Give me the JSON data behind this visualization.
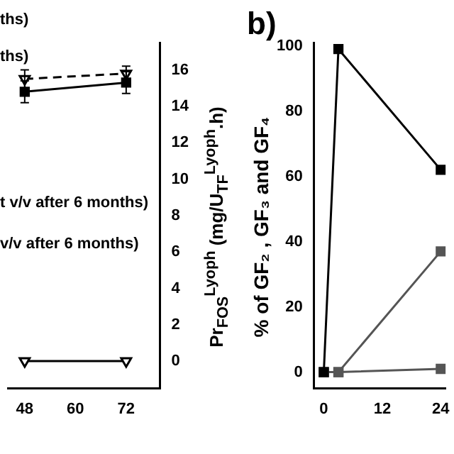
{
  "chart_data": [
    {
      "type": "line",
      "x": [
        48,
        72
      ],
      "xlim": [
        44,
        80
      ],
      "xticks": [
        48,
        60,
        72
      ],
      "y2lim": [
        -1.5,
        17.5
      ],
      "y2ticks": [
        0,
        2,
        4,
        6,
        8,
        10,
        12,
        14,
        16
      ],
      "y2label": "Pr$_{FOS}$$^{Lyoph}$ (mg/U$_{TF}$$^{Lyoph}$.h)",
      "annotations": [
        "ths)",
        "ths)",
        "t v/v after 6 months)",
        "v/v after 6 months)"
      ],
      "series": [
        {
          "color": "#000000",
          "values": [
            14.8,
            15.3
          ],
          "errors": [
            0.6,
            0.6
          ],
          "marker": "square",
          "line_style": "solid",
          "axis": "y2"
        },
        {
          "color": "#000000",
          "values": [
            15.5,
            15.8
          ],
          "errors": [
            0.5,
            0.4
          ],
          "marker": "triangle",
          "line_style": "dashed",
          "axis": "y2"
        },
        {
          "color": "#000000",
          "values": [
            0,
            0
          ],
          "marker": "triangle",
          "line_style": "solid",
          "axis": "y2"
        }
      ]
    },
    {
      "type": "line",
      "title": "b)",
      "x": [
        0,
        3,
        24
      ],
      "xlim": [
        -2,
        25
      ],
      "xticks": [
        0,
        12,
        24
      ],
      "ylim": [
        -5,
        101
      ],
      "yticks": [
        0,
        20,
        40,
        60,
        80,
        100
      ],
      "ylabel": "% of GF₂ , GF₃ and GF₄",
      "series": [
        {
          "color": "#000000",
          "values": [
            0,
            99,
            62
          ],
          "marker": "square",
          "line_style": "solid"
        },
        {
          "color": "#555555",
          "values": [
            0,
            0,
            37
          ],
          "marker": "square",
          "line_style": "solid"
        },
        {
          "color": "#555555",
          "values": [
            0,
            0,
            1
          ],
          "marker": "square",
          "line_style": "solid"
        }
      ]
    }
  ]
}
